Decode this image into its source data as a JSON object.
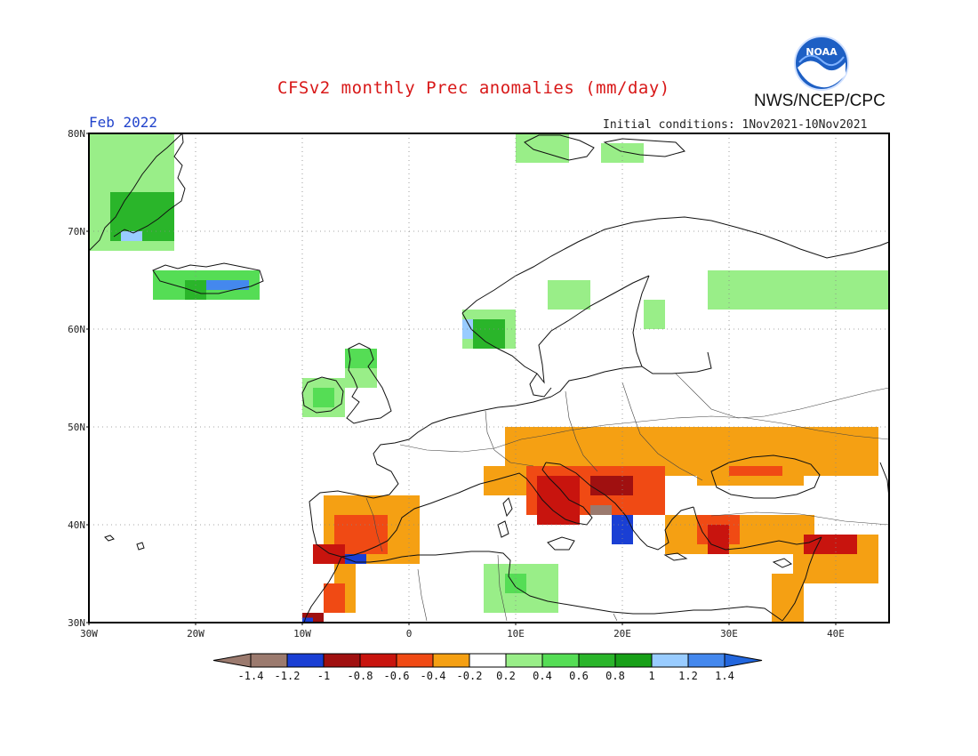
{
  "header": {
    "title": "CFSv2 monthly Prec anomalies (mm/day)",
    "agency": "NWS/NCEP/CPC",
    "logo_text": "NOAA",
    "month": "Feb 2022",
    "initial_conditions": "Initial conditions: 1Nov2021-10Nov2021"
  },
  "map": {
    "lon_range": [
      -30,
      45
    ],
    "lat_range": [
      30,
      80
    ],
    "lat_labels": [
      "30N",
      "40N",
      "50N",
      "60N",
      "70N",
      "80N"
    ],
    "lon_labels": [
      "30W",
      "20W",
      "10W",
      "0",
      "10E",
      "20E",
      "30E",
      "40E"
    ],
    "colors": {
      "-1.4": "#9b7a6e",
      "-1.2": "#1a3fd4",
      "-1": "#a01010",
      "-0.8": "#c8140e",
      "-0.6": "#f04a14",
      "-0.4": "#f5a013",
      "0.2": "#99ee88",
      "0.4": "#55dd55",
      "0.6": "#2ab52a",
      "0.8": "#18a018",
      "1": "#99ccff",
      "1.2": "#4488ee",
      "1.4": "#2266dd"
    },
    "anomaly_regions": [
      {
        "value": -0.4,
        "lon": [
          -8,
          1
        ],
        "lat": [
          36,
          43
        ]
      },
      {
        "value": -0.6,
        "lon": [
          -7,
          -2
        ],
        "lat": [
          37,
          41
        ]
      },
      {
        "value": -0.8,
        "lon": [
          -9,
          -6
        ],
        "lat": [
          36,
          38
        ]
      },
      {
        "value": -1.2,
        "lon": [
          -6,
          -4
        ],
        "lat": [
          36,
          37
        ]
      },
      {
        "value": -0.4,
        "lon": [
          -7,
          -5
        ],
        "lat": [
          31,
          36
        ]
      },
      {
        "value": -0.6,
        "lon": [
          -8,
          -6
        ],
        "lat": [
          31,
          34
        ]
      },
      {
        "value": -1.0,
        "lon": [
          -10,
          -8
        ],
        "lat": [
          30,
          31
        ]
      },
      {
        "value": -1.2,
        "lon": [
          -10,
          -9
        ],
        "lat": [
          30,
          30.5
        ]
      },
      {
        "value": -0.4,
        "lon": [
          9,
          44
        ],
        "lat": [
          45,
          50
        ]
      },
      {
        "value": -0.4,
        "lon": [
          7,
          14
        ],
        "lat": [
          43,
          46
        ]
      },
      {
        "value": -0.6,
        "lon": [
          11,
          24
        ],
        "lat": [
          41,
          46
        ]
      },
      {
        "value": -0.8,
        "lon": [
          12,
          16
        ],
        "lat": [
          40,
          45
        ]
      },
      {
        "value": -1.0,
        "lon": [
          17,
          21
        ],
        "lat": [
          43,
          45
        ]
      },
      {
        "value": -1.2,
        "lon": [
          19,
          21
        ],
        "lat": [
          38,
          41
        ]
      },
      {
        "value": -1.4,
        "lon": [
          17,
          19
        ],
        "lat": [
          41,
          42
        ]
      },
      {
        "value": -0.4,
        "lon": [
          24,
          38
        ],
        "lat": [
          37,
          41
        ]
      },
      {
        "value": -0.6,
        "lon": [
          27,
          31
        ],
        "lat": [
          38,
          41
        ]
      },
      {
        "value": -0.8,
        "lon": [
          28,
          30
        ],
        "lat": [
          37,
          40
        ]
      },
      {
        "value": -0.4,
        "lon": [
          36,
          44
        ],
        "lat": [
          34,
          39
        ]
      },
      {
        "value": -0.8,
        "lon": [
          37,
          42
        ],
        "lat": [
          37,
          39
        ]
      },
      {
        "value": -0.4,
        "lon": [
          34,
          37
        ],
        "lat": [
          30,
          35
        ]
      },
      {
        "value": -0.4,
        "lon": [
          27,
          37
        ],
        "lat": [
          44,
          47
        ]
      },
      {
        "value": -0.6,
        "lon": [
          30,
          35
        ],
        "lat": [
          45,
          46
        ]
      },
      {
        "value": 0.2,
        "lon": [
          7,
          14
        ],
        "lat": [
          31,
          36
        ]
      },
      {
        "value": 0.4,
        "lon": [
          9,
          11
        ],
        "lat": [
          33,
          35
        ]
      },
      {
        "value": 0.2,
        "lon": [
          -6,
          -3
        ],
        "lat": [
          54,
          58
        ]
      },
      {
        "value": 0.4,
        "lon": [
          -6,
          -3
        ],
        "lat": [
          56,
          58
        ]
      },
      {
        "value": 0.2,
        "lon": [
          -10,
          -6
        ],
        "lat": [
          51,
          55
        ]
      },
      {
        "value": 0.4,
        "lon": [
          -9,
          -7
        ],
        "lat": [
          52,
          54
        ]
      },
      {
        "value": 0.2,
        "lon": [
          5,
          10
        ],
        "lat": [
          58,
          62
        ]
      },
      {
        "value": 0.6,
        "lon": [
          6,
          9
        ],
        "lat": [
          58,
          61
        ]
      },
      {
        "value": 1.0,
        "lon": [
          5,
          6
        ],
        "lat": [
          59,
          61
        ]
      },
      {
        "value": 0.2,
        "lon": [
          13,
          17
        ],
        "lat": [
          62,
          65
        ]
      },
      {
        "value": 0.2,
        "lon": [
          22,
          24
        ],
        "lat": [
          60,
          63
        ]
      },
      {
        "value": 0.2,
        "lon": [
          28,
          45
        ],
        "lat": [
          62,
          66
        ]
      },
      {
        "value": 0.2,
        "lon": [
          10,
          15
        ],
        "lat": [
          77,
          80
        ]
      },
      {
        "value": 0.2,
        "lon": [
          18,
          22
        ],
        "lat": [
          77,
          79
        ]
      },
      {
        "value": 0.2,
        "lon": [
          -30,
          -22
        ],
        "lat": [
          68,
          80
        ]
      },
      {
        "value": 0.6,
        "lon": [
          -28,
          -22
        ],
        "lat": [
          69,
          74
        ]
      },
      {
        "value": 1.0,
        "lon": [
          -27,
          -25
        ],
        "lat": [
          69,
          70
        ]
      },
      {
        "value": 0.4,
        "lon": [
          -24,
          -14
        ],
        "lat": [
          63,
          66
        ]
      },
      {
        "value": 1.2,
        "lon": [
          -19,
          -15
        ],
        "lat": [
          64,
          65
        ]
      },
      {
        "value": 0.6,
        "lon": [
          -21,
          -19
        ],
        "lat": [
          63,
          65
        ]
      }
    ]
  },
  "colorbar": {
    "labels": [
      "-1.4",
      "-1.2",
      "-1",
      "-0.8",
      "-0.6",
      "-0.4",
      "-0.2",
      "0.2",
      "0.4",
      "0.6",
      "0.8",
      "1",
      "1.2",
      "1.4"
    ],
    "colors": [
      "#9b7a6e",
      "#9b7a6e",
      "#1a3fd4",
      "#a01010",
      "#c8140e",
      "#f04a14",
      "#f5a013",
      "#ffffff",
      "#99ee88",
      "#55dd55",
      "#2ab52a",
      "#18a018",
      "#99ccff",
      "#4488ee",
      "#2266dd"
    ]
  }
}
